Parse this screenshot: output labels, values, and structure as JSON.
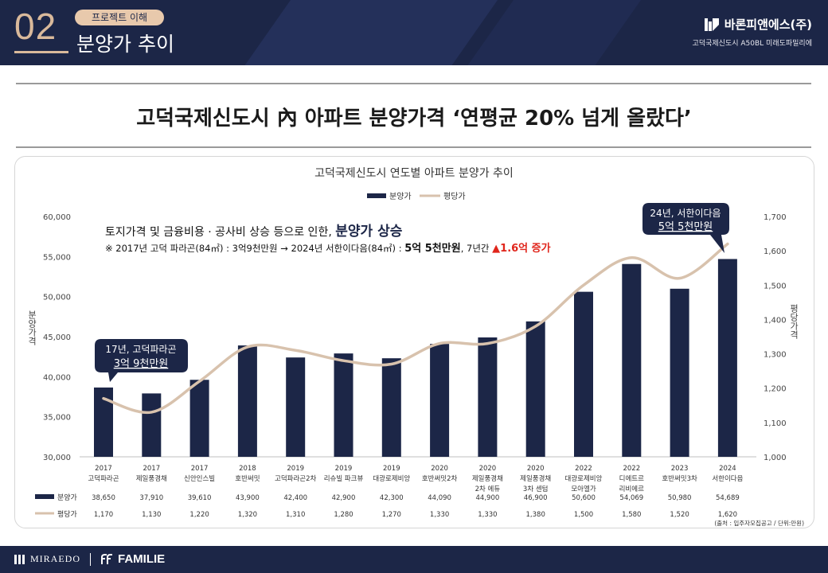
{
  "header": {
    "section_number": "02",
    "section_pill": "프로젝트 이해",
    "section_title": "분양가 추이",
    "brand_name": "바론피앤에스(주)",
    "brand_sub": "고덕국제신도시 A50BL 미래도파밀리에"
  },
  "headline": "고덕국제신도시 內 아파트 분양가격 ‘연평균 20% 넘게 올랐다’",
  "annotations": {
    "line1_prefix": "토지가격 및 금융비용 · 공사비 상승 등으로 인한, ",
    "line1_emph": "분양가 상승",
    "line2_prefix": "※ 2017년 고덕 파라곤(84㎡) : 3억9천만원 → 2024년 서한이다음(84㎡) : ",
    "line2_bold": "5억 5천만원",
    "line2_mid": ", 7년간 ",
    "line2_red": "▲1.6억 증가",
    "callout_left_line1": "17년, 고덕파라곤",
    "callout_left_line2": "3억 9천만원",
    "callout_right_line1": "24년, 서한이다음",
    "callout_right_line2": "5억 5천만원",
    "source": "(출처 : 입주자모집공고 / 단위:만원)"
  },
  "chart_data": {
    "type": "bar+line",
    "title": "고덕국제신도시 연도별 아파트 분양가 추이",
    "categories": [
      [
        "2017",
        "고덕파라곤"
      ],
      [
        "2017",
        "제일풍경채"
      ],
      [
        "2017",
        "신안인스빌"
      ],
      [
        "2018",
        "호반써밋"
      ],
      [
        "2019",
        "고덕파라곤2차"
      ],
      [
        "2019",
        "리슈빌 파크뷰"
      ],
      [
        "2019",
        "대광로제비앙"
      ],
      [
        "2020",
        "호반써밋2차"
      ],
      [
        "2020",
        "제일풍경채",
        "2차 에듀"
      ],
      [
        "2020",
        "제일풍경채",
        "3차 센텀"
      ],
      [
        "2022",
        "대광로제비앙",
        "모아엘가"
      ],
      [
        "2022",
        "디에트르",
        "리비에르"
      ],
      [
        "2023",
        "호반써밋3차"
      ],
      [
        "2024",
        "서한이다음"
      ]
    ],
    "series": [
      {
        "name": "분양가",
        "type": "bar",
        "axis": "left",
        "color": "#1c2647",
        "values": [
          38650,
          37910,
          39610,
          43900,
          42400,
          42900,
          42300,
          44090,
          44900,
          46900,
          50600,
          54069,
          50980,
          54689
        ],
        "labels": [
          "38,650",
          "37,910",
          "39,610",
          "43,900",
          "42,400",
          "42,900",
          "42,300",
          "44,090",
          "44,900",
          "46,900",
          "50,600",
          "54,069",
          "50,980",
          "54,689"
        ]
      },
      {
        "name": "평당가",
        "type": "line",
        "axis": "right",
        "color": "#d8c2ad",
        "values": [
          1170,
          1130,
          1220,
          1320,
          1310,
          1280,
          1270,
          1330,
          1330,
          1380,
          1500,
          1580,
          1520,
          1620
        ],
        "labels": [
          "1,170",
          "1,130",
          "1,220",
          "1,320",
          "1,310",
          "1,280",
          "1,270",
          "1,330",
          "1,330",
          "1,380",
          "1,500",
          "1,580",
          "1,520",
          "1,620"
        ]
      }
    ],
    "ylabel_left": "분양가격",
    "ylabel_right": "평당가격",
    "ylim_left": [
      30000,
      60000
    ],
    "ylim_right": [
      1000,
      1700
    ],
    "yticks_left": [
      "30,000",
      "35,000",
      "40,000",
      "45,000",
      "50,000",
      "55,000",
      "60,000"
    ],
    "yticks_right": [
      "1,000",
      "1,100",
      "1,200",
      "1,300",
      "1,400",
      "1,500",
      "1,600",
      "1,700"
    ],
    "legend": "top-center",
    "grid": false
  },
  "footer": {
    "brand_left": "MIRAEDO",
    "brand_right": "FAMILIE"
  }
}
